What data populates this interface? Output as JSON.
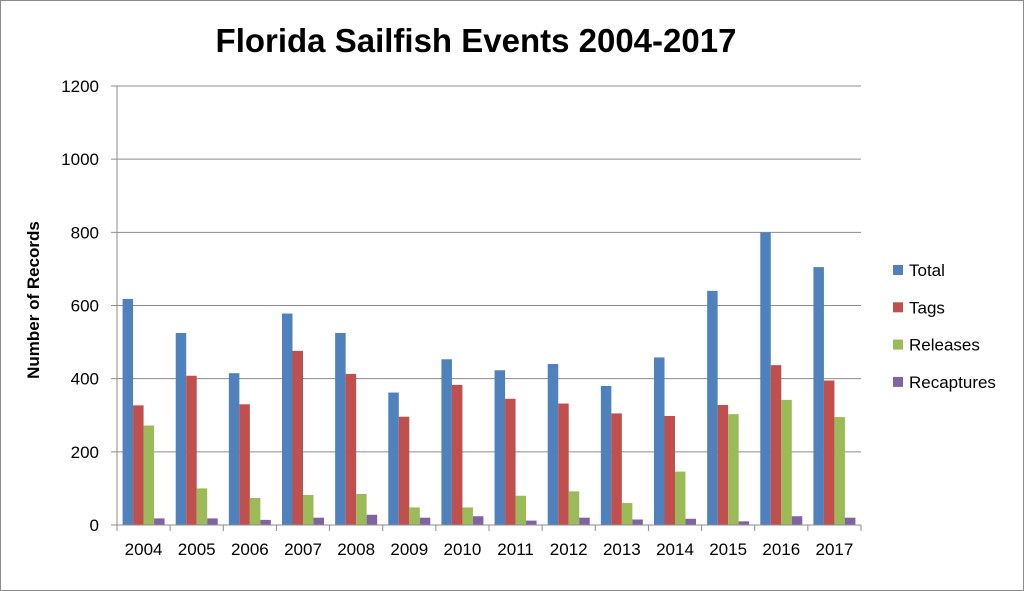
{
  "chart_data": {
    "type": "bar",
    "title": "Florida Sailfish Events 2004-2017",
    "xlabel": "",
    "ylabel": "Number of Records",
    "ylim": [
      0,
      1200
    ],
    "yticks": [
      0,
      200,
      400,
      600,
      800,
      1000,
      1200
    ],
    "grid": true,
    "legend_position": "right",
    "categories": [
      "2004",
      "2005",
      "2006",
      "2007",
      "2008",
      "2009",
      "2010",
      "2011",
      "2012",
      "2013",
      "2014",
      "2015",
      "2016",
      "2017"
    ],
    "series": [
      {
        "name": "Total",
        "color": "#4f81bd",
        "values": [
          618,
          525,
          415,
          578,
          525,
          362,
          453,
          423,
          440,
          380,
          458,
          640,
          800,
          705
        ]
      },
      {
        "name": "Tags",
        "color": "#c0504d",
        "values": [
          327,
          408,
          330,
          476,
          413,
          296,
          383,
          345,
          332,
          305,
          298,
          328,
          437,
          395
        ]
      },
      {
        "name": "Releases",
        "color": "#9bbb59",
        "values": [
          272,
          100,
          74,
          82,
          85,
          48,
          48,
          80,
          92,
          60,
          146,
          303,
          342,
          295
        ]
      },
      {
        "name": "Recaptures",
        "color": "#8064a2",
        "values": [
          18,
          18,
          14,
          20,
          28,
          20,
          24,
          12,
          20,
          15,
          17,
          10,
          24,
          20
        ]
      }
    ]
  }
}
